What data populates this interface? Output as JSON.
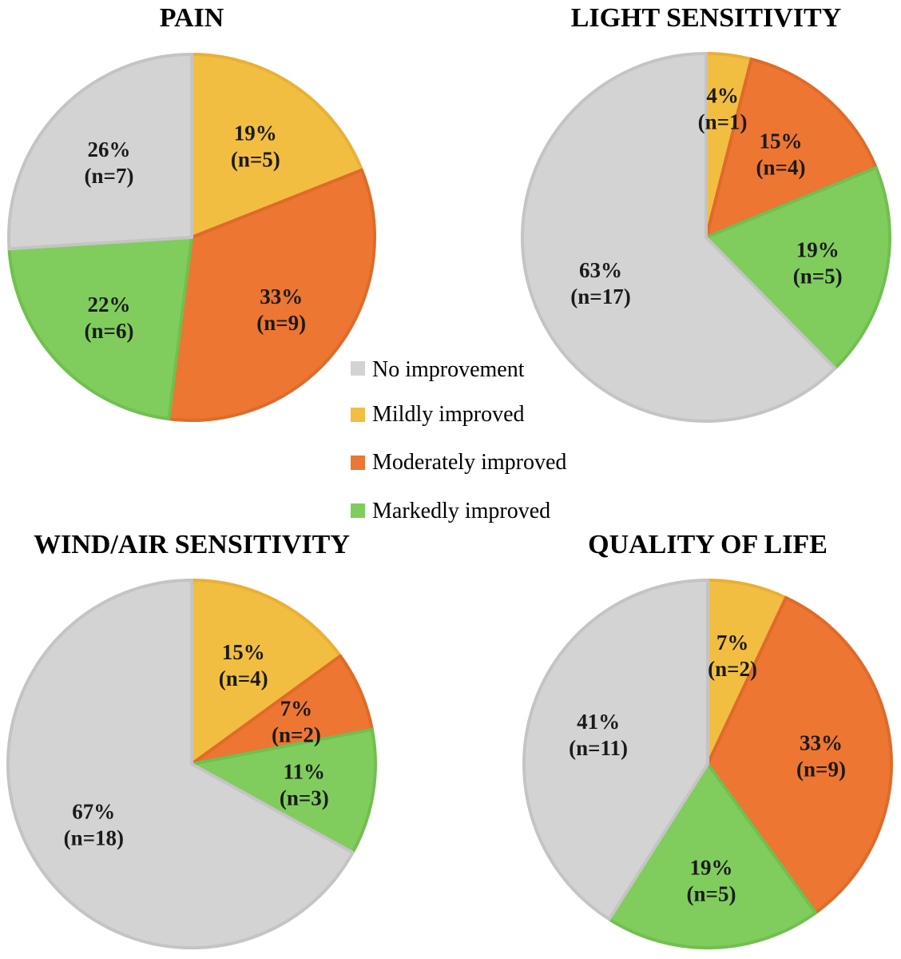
{
  "colors": {
    "no_improvement": "#d3d3d3",
    "mildly_improved": "#f2be41",
    "moderately_improved": "#ec7632",
    "markedly_improved": "#80cd5d",
    "no_improvement_stroke": "#c4c4c4",
    "mildly_improved_stroke": "#e9b034",
    "moderately_improved_stroke": "#e06a28",
    "markedly_improved_stroke": "#70c04f"
  },
  "legend": {
    "position": "center",
    "entries": [
      {
        "key": "no_improvement",
        "label": "No improvement"
      },
      {
        "key": "mildly_improved",
        "label": "Mildly improved"
      },
      {
        "key": "moderately_improved",
        "label": "Moderately improved"
      },
      {
        "key": "markedly_improved",
        "label": "Markedly improved"
      }
    ]
  },
  "chart_data": [
    {
      "type": "pie",
      "title": "PAIN",
      "slices": [
        {
          "category": "mildly_improved",
          "value": 19,
          "n": 5,
          "pct_label": "19%",
          "n_label": "(n=5)"
        },
        {
          "category": "moderately_improved",
          "value": 33,
          "n": 9,
          "pct_label": "33%",
          "n_label": "(n=9)"
        },
        {
          "category": "markedly_improved",
          "value": 22,
          "n": 6,
          "pct_label": "22%",
          "n_label": "(n=6)"
        },
        {
          "category": "no_improvement",
          "value": 26,
          "n": 7,
          "pct_label": "26%",
          "n_label": "(n=7)"
        }
      ]
    },
    {
      "type": "pie",
      "title": "LIGHT SENSITIVITY",
      "slices": [
        {
          "category": "mildly_improved",
          "value": 4,
          "n": 1,
          "pct_label": "4%",
          "n_label": "(n=1)"
        },
        {
          "category": "moderately_improved",
          "value": 15,
          "n": 4,
          "pct_label": "15%",
          "n_label": "(n=4)"
        },
        {
          "category": "markedly_improved",
          "value": 19,
          "n": 5,
          "pct_label": "19%",
          "n_label": "(n=5)"
        },
        {
          "category": "no_improvement",
          "value": 63,
          "n": 17,
          "pct_label": "63%",
          "n_label": "(n=17)"
        }
      ]
    },
    {
      "type": "pie",
      "title": "WIND/AIR SENSITIVITY",
      "slices": [
        {
          "category": "mildly_improved",
          "value": 15,
          "n": 4,
          "pct_label": "15%",
          "n_label": "(n=4)"
        },
        {
          "category": "moderately_improved",
          "value": 7,
          "n": 2,
          "pct_label": "7%",
          "n_label": "(n=2)"
        },
        {
          "category": "markedly_improved",
          "value": 11,
          "n": 3,
          "pct_label": "11%",
          "n_label": "(n=3)"
        },
        {
          "category": "no_improvement",
          "value": 67,
          "n": 18,
          "pct_label": "67%",
          "n_label": "(n=18)"
        }
      ]
    },
    {
      "type": "pie",
      "title": "QUALITY OF LIFE",
      "slices": [
        {
          "category": "mildly_improved",
          "value": 7,
          "n": 2,
          "pct_label": "7%",
          "n_label": "(n=2)"
        },
        {
          "category": "moderately_improved",
          "value": 33,
          "n": 9,
          "pct_label": "33%",
          "n_label": "(n=9)"
        },
        {
          "category": "markedly_improved",
          "value": 19,
          "n": 5,
          "pct_label": "19%",
          "n_label": "(n=5)"
        },
        {
          "category": "no_improvement",
          "value": 41,
          "n": 11,
          "pct_label": "41%",
          "n_label": "(n=11)"
        }
      ]
    }
  ]
}
